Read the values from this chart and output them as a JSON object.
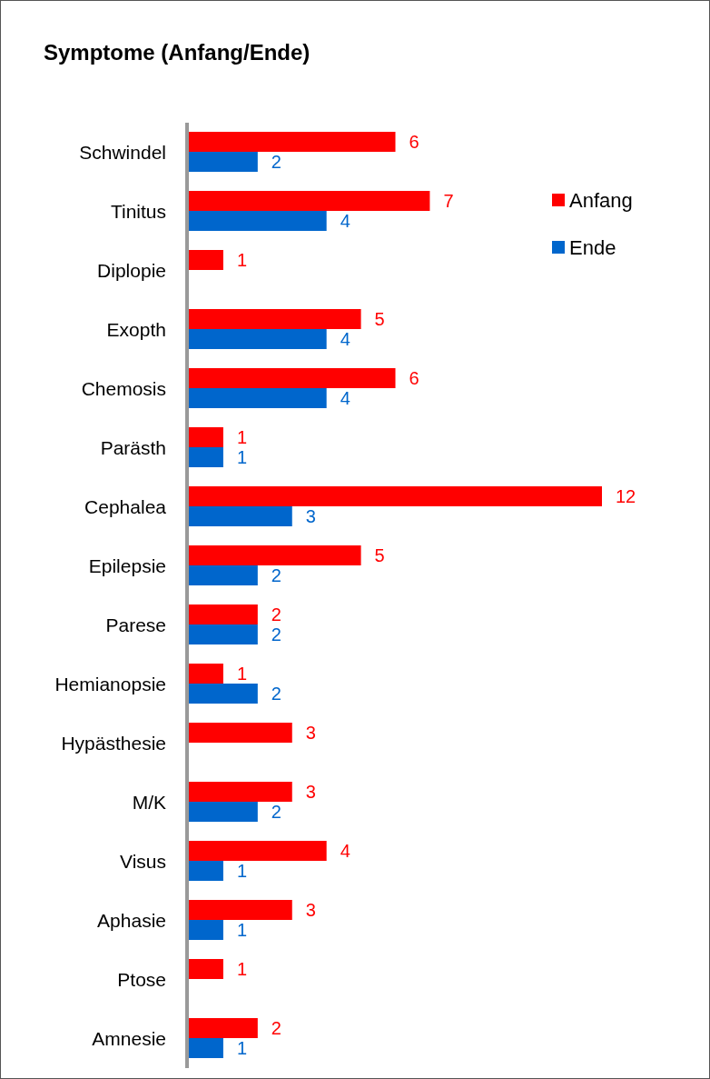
{
  "chart_data": {
    "type": "bar",
    "orientation": "horizontal",
    "title": "Symptome (Anfang/Ende)",
    "categories": [
      "Schwindel",
      "Tinitus",
      "Diplopie",
      "Exopth",
      "Chemosis",
      "Parästh",
      "Cephalea",
      "Epilepsie",
      "Parese",
      "Hemianopsie",
      "Hypästhesie",
      "M/K",
      "Visus",
      "Aphasie",
      "Ptose",
      "Amnesie"
    ],
    "series": [
      {
        "name": "Anfang",
        "color": "#ff0000",
        "values": [
          6,
          7,
          1,
          5,
          6,
          1,
          12,
          5,
          2,
          1,
          3,
          3,
          4,
          3,
          1,
          2
        ]
      },
      {
        "name": "Ende",
        "color": "#0066cc",
        "values": [
          2,
          4,
          null,
          4,
          4,
          1,
          3,
          2,
          2,
          2,
          null,
          2,
          1,
          1,
          null,
          1
        ]
      }
    ],
    "data_labels": true,
    "legend": "top right"
  }
}
